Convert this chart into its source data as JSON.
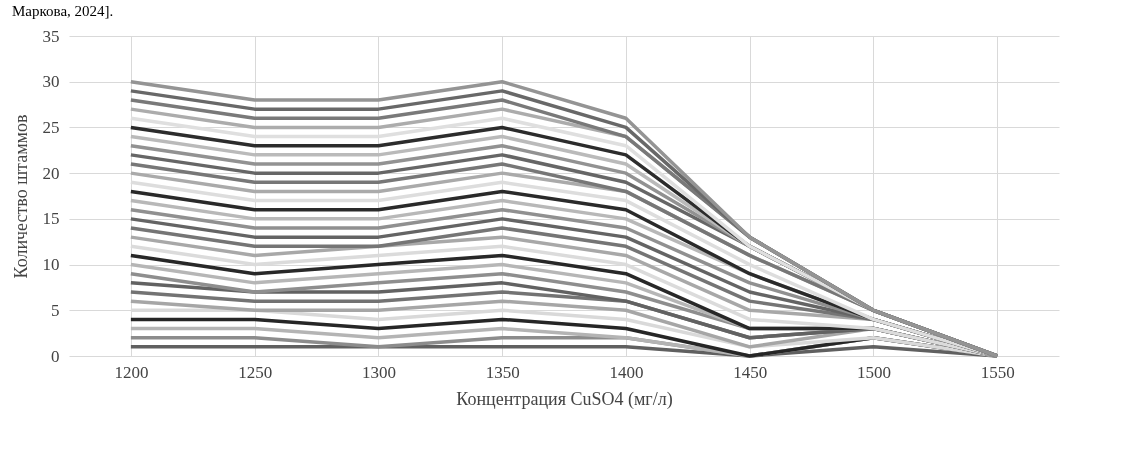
{
  "chart_data": {
    "type": "line",
    "xlabel": "Концентрация CuSO4 (мг/л)",
    "ylabel": "Количество штаммов",
    "annotations": [
      "Маркова, 2024]."
    ],
    "x": [
      1200,
      1250,
      1300,
      1350,
      1400,
      1450,
      1500,
      1550
    ],
    "xlim": [
      1175,
      1575
    ],
    "xticks": [
      1200,
      1250,
      1300,
      1350,
      1400,
      1450,
      1500,
      1550
    ],
    "ylim": [
      0,
      35
    ],
    "yticks": [
      0,
      5,
      10,
      15,
      20,
      25,
      30,
      35
    ],
    "grid": true,
    "legend": false,
    "line_style": "solid",
    "series": [
      {
        "color": "#606060",
        "values": [
          1,
          1,
          1,
          1,
          1,
          0,
          1,
          0
        ]
      },
      {
        "color": "#8c8c8c",
        "values": [
          2,
          2,
          1,
          2,
          2,
          0,
          2,
          0
        ]
      },
      {
        "color": "#b4b4b4",
        "values": [
          3,
          3,
          2,
          3,
          2,
          0,
          2,
          0
        ]
      },
      {
        "color": "#262626",
        "values": [
          4,
          4,
          3,
          4,
          3,
          0,
          2,
          0
        ]
      },
      {
        "color": "#d9d9d9",
        "values": [
          5,
          5,
          4,
          5,
          4,
          1,
          2,
          0
        ]
      },
      {
        "color": "#a6a6a6",
        "values": [
          6,
          5,
          5,
          6,
          5,
          1,
          3,
          0
        ]
      },
      {
        "color": "#737373",
        "values": [
          7,
          6,
          6,
          7,
          6,
          2,
          3,
          0
        ]
      },
      {
        "color": "#626262",
        "values": [
          8,
          7,
          7,
          8,
          6,
          2,
          3,
          0
        ]
      },
      {
        "color": "#8e8e8e",
        "values": [
          9,
          7,
          8,
          9,
          7,
          3,
          3,
          0
        ]
      },
      {
        "color": "#b6b6b6",
        "values": [
          10,
          8,
          9,
          10,
          8,
          3,
          3,
          0
        ]
      },
      {
        "color": "#282828",
        "values": [
          11,
          9,
          10,
          11,
          9,
          3,
          3,
          0
        ]
      },
      {
        "color": "#dbdbdb",
        "values": [
          12,
          10,
          11,
          12,
          10,
          4,
          3,
          0
        ]
      },
      {
        "color": "#a8a8a8",
        "values": [
          13,
          11,
          12,
          13,
          11,
          5,
          4,
          0
        ]
      },
      {
        "color": "#757575",
        "values": [
          14,
          12,
          12,
          14,
          12,
          6,
          4,
          0
        ]
      },
      {
        "color": "#646464",
        "values": [
          15,
          13,
          13,
          15,
          13,
          7,
          4,
          0
        ]
      },
      {
        "color": "#909090",
        "values": [
          16,
          14,
          14,
          16,
          14,
          8,
          4,
          0
        ]
      },
      {
        "color": "#b8b8b8",
        "values": [
          17,
          15,
          15,
          17,
          15,
          9,
          4,
          0
        ]
      },
      {
        "color": "#2a2a2a",
        "values": [
          18,
          16,
          16,
          18,
          16,
          9,
          4,
          0
        ]
      },
      {
        "color": "#dddddd",
        "values": [
          19,
          17,
          17,
          19,
          17,
          10,
          4,
          0
        ]
      },
      {
        "color": "#aaaaaa",
        "values": [
          20,
          18,
          18,
          20,
          18,
          11,
          5,
          0
        ]
      },
      {
        "color": "#777777",
        "values": [
          21,
          19,
          19,
          21,
          18,
          11,
          5,
          0
        ]
      },
      {
        "color": "#666666",
        "values": [
          22,
          20,
          20,
          22,
          19,
          12,
          5,
          0
        ]
      },
      {
        "color": "#929292",
        "values": [
          23,
          21,
          21,
          23,
          20,
          12,
          5,
          0
        ]
      },
      {
        "color": "#bababa",
        "values": [
          24,
          22,
          22,
          24,
          21,
          12,
          5,
          0
        ]
      },
      {
        "color": "#2c2c2c",
        "values": [
          25,
          23,
          23,
          25,
          22,
          12,
          5,
          0
        ]
      },
      {
        "color": "#dfdfdf",
        "values": [
          26,
          24,
          24,
          26,
          23,
          12,
          5,
          0
        ]
      },
      {
        "color": "#acacac",
        "values": [
          27,
          25,
          25,
          27,
          24,
          13,
          5,
          0
        ]
      },
      {
        "color": "#797979",
        "values": [
          28,
          26,
          26,
          28,
          24,
          13,
          5,
          0
        ]
      },
      {
        "color": "#686868",
        "values": [
          29,
          27,
          27,
          29,
          25,
          13,
          5,
          0
        ]
      },
      {
        "color": "#949494",
        "values": [
          30,
          28,
          28,
          30,
          26,
          13,
          5,
          0
        ]
      }
    ]
  }
}
